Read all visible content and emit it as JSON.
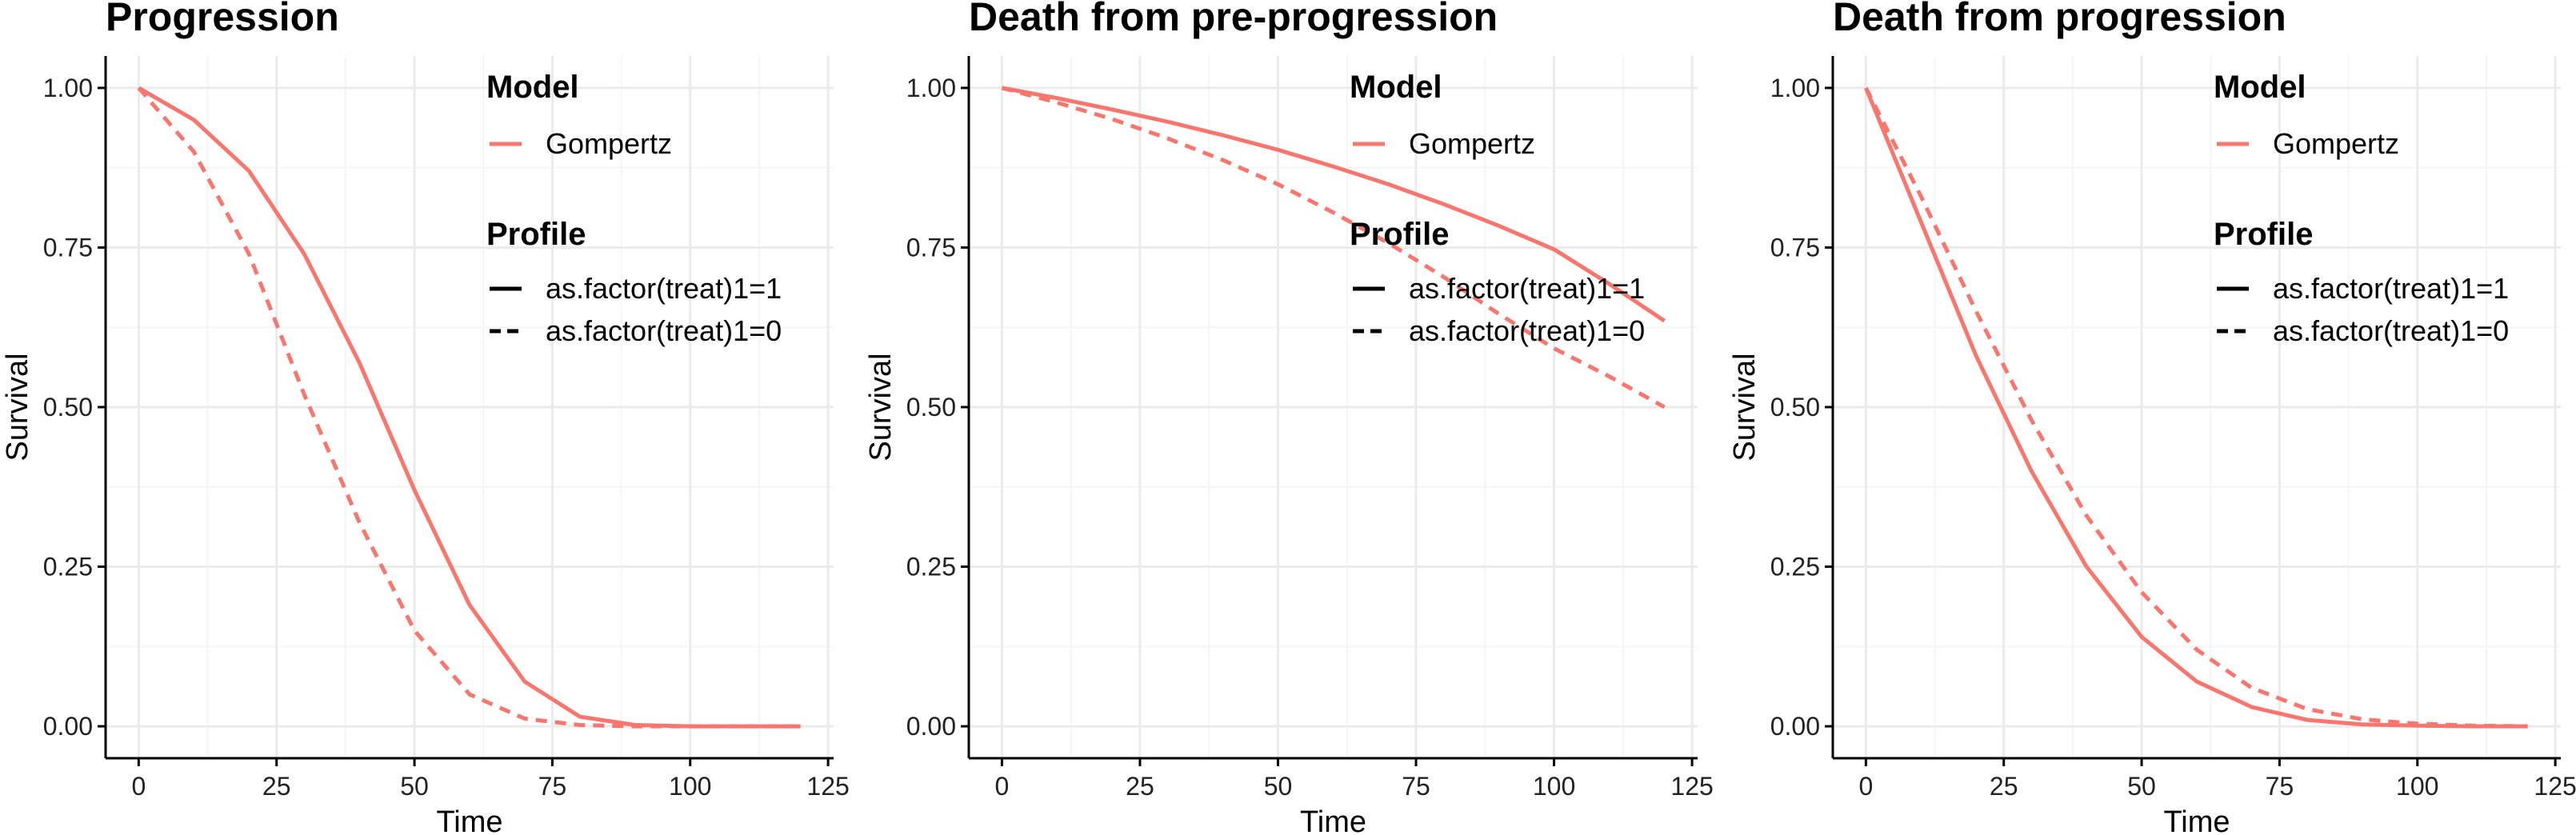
{
  "chart_data": [
    {
      "type": "line",
      "title": "Progression",
      "xlabel": "Time",
      "ylabel": "Survival",
      "xlim": [
        -6,
        126
      ],
      "ylim": [
        -0.05,
        1.05
      ],
      "xticks": [
        0,
        25,
        50,
        75,
        100,
        125
      ],
      "xtick_labels": [
        "0",
        "25",
        "50",
        "75",
        "100",
        "125"
      ],
      "yticks": [
        0,
        0.25,
        0.5,
        0.75,
        1.0
      ],
      "ytick_labels": [
        "0.00",
        "0.25",
        "0.50",
        "0.75",
        "1.00"
      ],
      "grid": true,
      "legend": {
        "placement": "top-right inside",
        "model_title": "Model",
        "model_label": "Gompertz",
        "profile_title": "Profile",
        "profile_labels": [
          "as.factor(treat)1=1",
          "as.factor(treat)1=0"
        ]
      },
      "series": [
        {
          "profile": "as.factor(treat)1=1",
          "linestyle": "solid",
          "x": [
            0,
            10,
            20,
            30,
            40,
            50,
            60,
            70,
            80,
            90,
            100,
            110,
            120
          ],
          "y": [
            1.0,
            0.95,
            0.87,
            0.74,
            0.57,
            0.37,
            0.19,
            0.07,
            0.015,
            0.002,
            0.0,
            0.0,
            0.0
          ]
        },
        {
          "profile": "as.factor(treat)1=0",
          "linestyle": "dashed",
          "x": [
            0,
            10,
            20,
            30,
            40,
            50,
            60,
            70,
            80,
            90,
            100,
            110,
            120
          ],
          "y": [
            1.0,
            0.9,
            0.74,
            0.52,
            0.32,
            0.15,
            0.05,
            0.012,
            0.002,
            0.0,
            0.0,
            0.0,
            0.0
          ]
        }
      ]
    },
    {
      "type": "line",
      "title": "Death from pre-progression",
      "xlabel": "Time",
      "ylabel": "Survival",
      "xlim": [
        -6,
        126
      ],
      "ylim": [
        -0.05,
        1.05
      ],
      "xticks": [
        0,
        25,
        50,
        75,
        100,
        125
      ],
      "xtick_labels": [
        "0",
        "25",
        "50",
        "75",
        "100",
        "125"
      ],
      "yticks": [
        0,
        0.25,
        0.5,
        0.75,
        1.0
      ],
      "ytick_labels": [
        "0.00",
        "0.25",
        "0.50",
        "0.75",
        "1.00"
      ],
      "grid": true,
      "legend": {
        "placement": "top-right inside",
        "model_title": "Model",
        "model_label": "Gompertz",
        "profile_title": "Profile",
        "profile_labels": [
          "as.factor(treat)1=1",
          "as.factor(treat)1=0"
        ]
      },
      "series": [
        {
          "profile": "as.factor(treat)1=1",
          "linestyle": "solid",
          "x": [
            0,
            10,
            20,
            30,
            40,
            50,
            60,
            70,
            80,
            90,
            100,
            110,
            120
          ],
          "y": [
            1.0,
            0.984,
            0.966,
            0.947,
            0.926,
            0.903,
            0.877,
            0.849,
            0.818,
            0.784,
            0.747,
            0.693,
            0.635
          ]
        },
        {
          "profile": "as.factor(treat)1=0",
          "linestyle": "dashed",
          "x": [
            0,
            10,
            20,
            30,
            40,
            50,
            60,
            70,
            80,
            90,
            100,
            110,
            120
          ],
          "y": [
            1.0,
            0.977,
            0.951,
            0.921,
            0.887,
            0.849,
            0.805,
            0.757,
            0.704,
            0.646,
            0.592,
            0.548,
            0.5
          ]
        }
      ]
    },
    {
      "type": "line",
      "title": "Death from progression",
      "xlabel": "Time",
      "ylabel": "Survival",
      "xlim": [
        -6,
        126
      ],
      "ylim": [
        -0.05,
        1.05
      ],
      "xticks": [
        0,
        25,
        50,
        75,
        100,
        125
      ],
      "xtick_labels": [
        "0",
        "25",
        "50",
        "75",
        "100",
        "125"
      ],
      "yticks": [
        0,
        0.25,
        0.5,
        0.75,
        1.0
      ],
      "ytick_labels": [
        "0.00",
        "0.25",
        "0.50",
        "0.75",
        "1.00"
      ],
      "grid": true,
      "legend": {
        "placement": "top-right inside",
        "model_title": "Model",
        "model_label": "Gompertz",
        "profile_title": "Profile",
        "profile_labels": [
          "as.factor(treat)1=1",
          "as.factor(treat)1=0"
        ]
      },
      "series": [
        {
          "profile": "as.factor(treat)1=1",
          "linestyle": "solid",
          "x": [
            0,
            10,
            20,
            30,
            40,
            50,
            60,
            70,
            80,
            90,
            100,
            110,
            120
          ],
          "y": [
            1.0,
            0.79,
            0.58,
            0.4,
            0.25,
            0.14,
            0.07,
            0.03,
            0.01,
            0.003,
            0.001,
            0.0,
            0.0
          ]
        },
        {
          "profile": "as.factor(treat)1=0",
          "linestyle": "dashed",
          "x": [
            0,
            10,
            20,
            30,
            40,
            50,
            60,
            70,
            80,
            90,
            100,
            110,
            120
          ],
          "y": [
            1.0,
            0.83,
            0.65,
            0.48,
            0.33,
            0.21,
            0.12,
            0.06,
            0.027,
            0.011,
            0.004,
            0.001,
            0.0
          ]
        }
      ]
    }
  ],
  "colors": {
    "line": "#F8766D",
    "grid_major": "#EBEBEB",
    "grid_minor": "#F5F5F5",
    "axis": "#000000",
    "legend_key": "#000000"
  }
}
